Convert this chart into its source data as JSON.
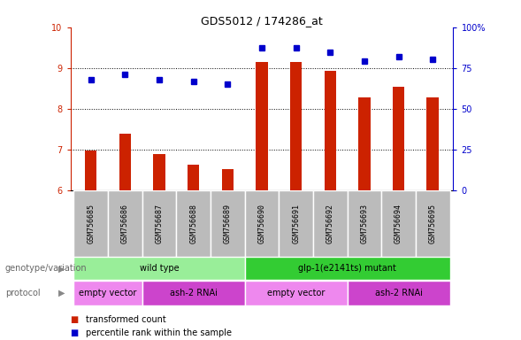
{
  "title": "GDS5012 / 174286_at",
  "samples": [
    "GSM756685",
    "GSM756686",
    "GSM756687",
    "GSM756688",
    "GSM756689",
    "GSM756690",
    "GSM756691",
    "GSM756692",
    "GSM756693",
    "GSM756694",
    "GSM756695"
  ],
  "bar_values": [
    6.98,
    7.38,
    6.88,
    6.62,
    6.52,
    9.15,
    9.15,
    8.92,
    8.28,
    8.55,
    8.28
  ],
  "dot_values": [
    8.72,
    8.85,
    8.72,
    8.68,
    8.6,
    9.5,
    9.5,
    9.38,
    9.18,
    9.28,
    9.22
  ],
  "bar_color": "#cc2200",
  "dot_color": "#0000cc",
  "ylim_left": [
    6,
    10
  ],
  "ylim_right": [
    0,
    100
  ],
  "yticks_left": [
    6,
    7,
    8,
    9,
    10
  ],
  "yticks_right": [
    0,
    25,
    50,
    75,
    100
  ],
  "ytick_labels_right": [
    "0",
    "25",
    "50",
    "75",
    "100%"
  ],
  "genotype_groups": [
    {
      "label": "wild type",
      "start": 0,
      "end": 4,
      "color": "#99ee99"
    },
    {
      "label": "glp-1(e2141ts) mutant",
      "start": 5,
      "end": 10,
      "color": "#33cc33"
    }
  ],
  "protocol_groups": [
    {
      "label": "empty vector",
      "start": 0,
      "end": 1,
      "color": "#ee88ee"
    },
    {
      "label": "ash-2 RNAi",
      "start": 2,
      "end": 4,
      "color": "#cc44cc"
    },
    {
      "label": "empty vector",
      "start": 5,
      "end": 7,
      "color": "#ee88ee"
    },
    {
      "label": "ash-2 RNAi",
      "start": 8,
      "end": 10,
      "color": "#cc44cc"
    }
  ],
  "legend_items": [
    {
      "label": "transformed count",
      "color": "#cc2200"
    },
    {
      "label": "percentile rank within the sample",
      "color": "#0000cc"
    }
  ],
  "genotype_label": "genotype/variation",
  "protocol_label": "protocol",
  "background_color": "#ffffff",
  "tick_area_bg": "#bbbbbb",
  "grid_lines": [
    7,
    8,
    9
  ],
  "bar_width": 0.35
}
